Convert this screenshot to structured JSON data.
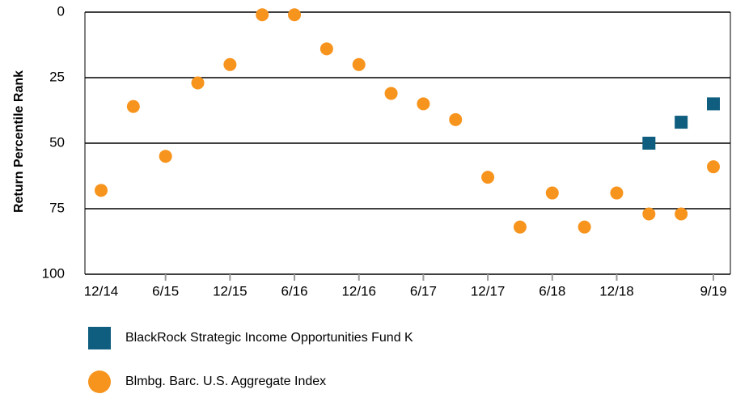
{
  "chart_data": {
    "type": "scatter",
    "y_label": "Return Percentile Rank",
    "categories": [
      "12/14",
      null,
      "6/15",
      null,
      "12/15",
      null,
      "6/16",
      null,
      "12/16",
      null,
      "6/17",
      null,
      "12/17",
      null,
      "6/18",
      null,
      "12/18",
      null,
      null,
      "9/19"
    ],
    "series": [
      {
        "name": "BlackRock Strategic Income Opportunities Fund K",
        "color": "#0f5e7f",
        "marker": "square",
        "values": [
          null,
          null,
          null,
          null,
          null,
          null,
          null,
          null,
          null,
          null,
          null,
          null,
          null,
          null,
          null,
          null,
          null,
          50,
          42,
          35
        ]
      },
      {
        "name": "Blmbg. Barc. U.S. Aggregate Index",
        "color": "#f7941d",
        "marker": "circle",
        "values": [
          68,
          36,
          55,
          27,
          20,
          1,
          1,
          14,
          20,
          31,
          35,
          41,
          63,
          82,
          69,
          82,
          69,
          77,
          77,
          59
        ]
      }
    ],
    "ylim": [
      0,
      100
    ],
    "yticks": [
      0,
      25,
      50,
      75,
      100
    ],
    "y_inverted": true,
    "grid": true,
    "legend": "bottom"
  }
}
